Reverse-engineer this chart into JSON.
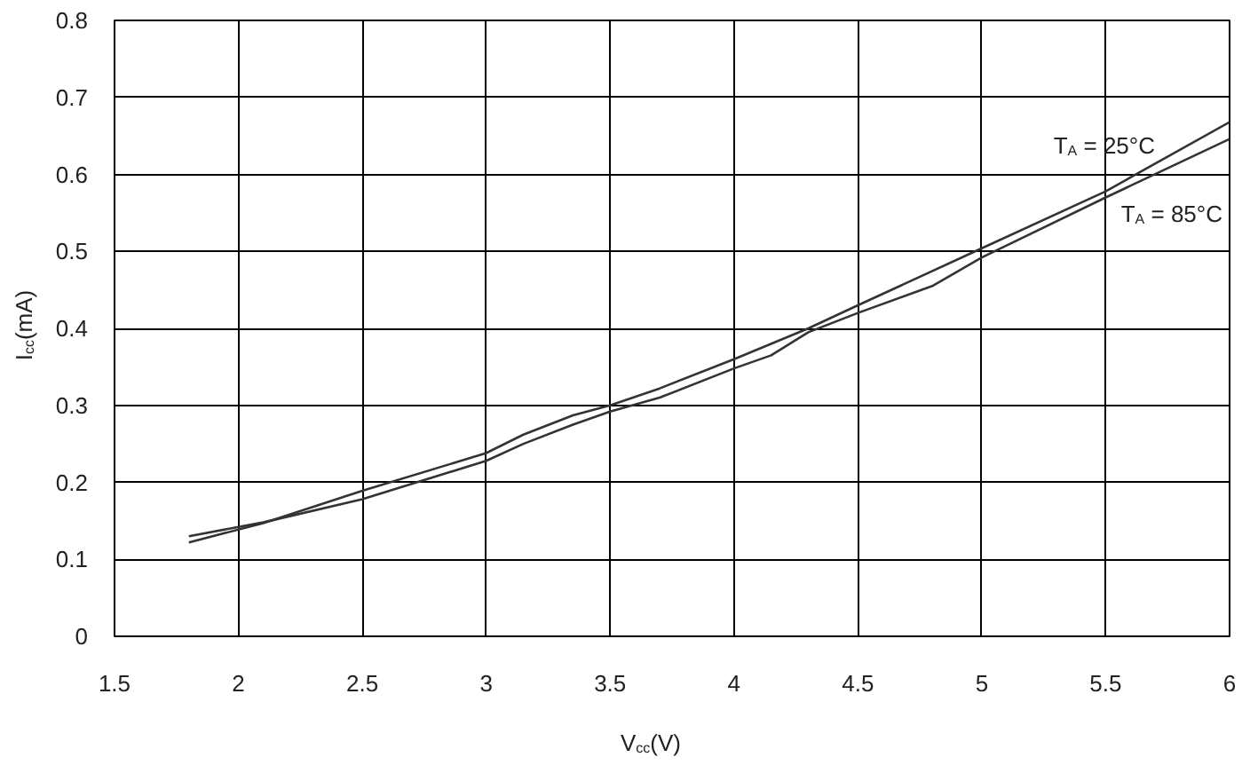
{
  "chart_data": {
    "type": "line",
    "xlabel": "V$_{cc}$(V)",
    "ylabel": "I$_{cc}$(mA)",
    "xlim": [
      1.5,
      6
    ],
    "xticks": [
      1.5,
      2,
      2.5,
      3,
      3.5,
      4,
      4.5,
      5,
      5.5,
      6
    ],
    "ylim": [
      0,
      0.8
    ],
    "yticks": [
      0,
      0.1,
      0.2,
      0.3,
      0.4,
      0.5,
      0.6,
      0.7,
      0.8
    ],
    "grid": true,
    "series": [
      {
        "name": "T$_{A}$ = 25°C",
        "color": "#333333",
        "x": [
          1.8,
          2.1,
          2.5,
          3.0,
          3.15,
          3.35,
          3.5,
          3.7,
          4.0,
          4.3,
          4.5,
          5.0,
          5.5,
          6.0
        ],
        "values": [
          0.122,
          0.147,
          0.189,
          0.238,
          0.262,
          0.287,
          0.3,
          0.322,
          0.36,
          0.4,
          0.43,
          0.504,
          0.578,
          0.668
        ]
      },
      {
        "name": "T$_{A}$ = 85°C",
        "color": "#333333",
        "x": [
          1.8,
          2.1,
          2.5,
          3.0,
          3.15,
          3.35,
          3.5,
          3.7,
          4.0,
          4.15,
          4.3,
          4.5,
          4.8,
          5.0,
          5.5,
          6.0
        ],
        "values": [
          0.13,
          0.148,
          0.178,
          0.228,
          0.25,
          0.275,
          0.292,
          0.31,
          0.348,
          0.365,
          0.395,
          0.42,
          0.455,
          0.492,
          0.57,
          0.646
        ]
      }
    ]
  }
}
